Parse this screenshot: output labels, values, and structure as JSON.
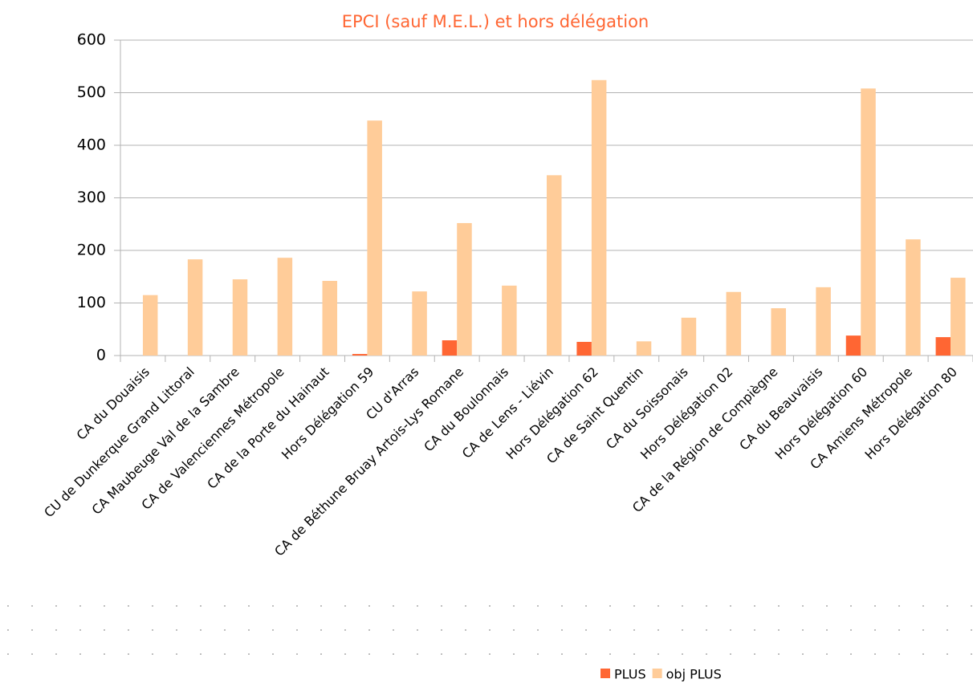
{
  "chart_data": {
    "type": "bar",
    "title": "EPCI (sauf M.E.L.) et hors délégation",
    "categories": [
      "CA du Douaisis",
      "CU de Dunkerque Grand Littoral",
      "CA Maubeuge Val de la Sambre",
      "CA de Valenciennes Métropole",
      "CA de la Porte du Hainaut",
      "Hors Délégation 59",
      "CU d'Arras",
      "CA de Béthune Bruay Artois-Lys Romane",
      "CA du Boulonnais",
      "CA de Lens - Liévin",
      "Hors Délégation 62",
      "CA de Saint Quentin",
      "CA du Soissonais",
      "Hors Délégation 02",
      "CA de la Région de Compiègne",
      "CA du Beauvaisis",
      "Hors Délégation 60",
      "CA Amiens Métropole",
      "Hors Délégation 80"
    ],
    "series": [
      {
        "name": "PLUS",
        "color": "#ff6633",
        "values": [
          0,
          0,
          0,
          0,
          0,
          3,
          0,
          29,
          0,
          0,
          26,
          0,
          0,
          0,
          0,
          0,
          38,
          0,
          35
        ]
      },
      {
        "name": "obj PLUS",
        "color": "#ffcc99",
        "values": [
          115,
          183,
          145,
          186,
          142,
          447,
          122,
          252,
          133,
          343,
          524,
          27,
          72,
          121,
          90,
          130,
          508,
          221,
          148
        ]
      }
    ],
    "ylim": [
      0,
      600
    ],
    "yticks": [
      0,
      100,
      200,
      300,
      400,
      500,
      600
    ],
    "grid": true,
    "legend": "bottom"
  }
}
